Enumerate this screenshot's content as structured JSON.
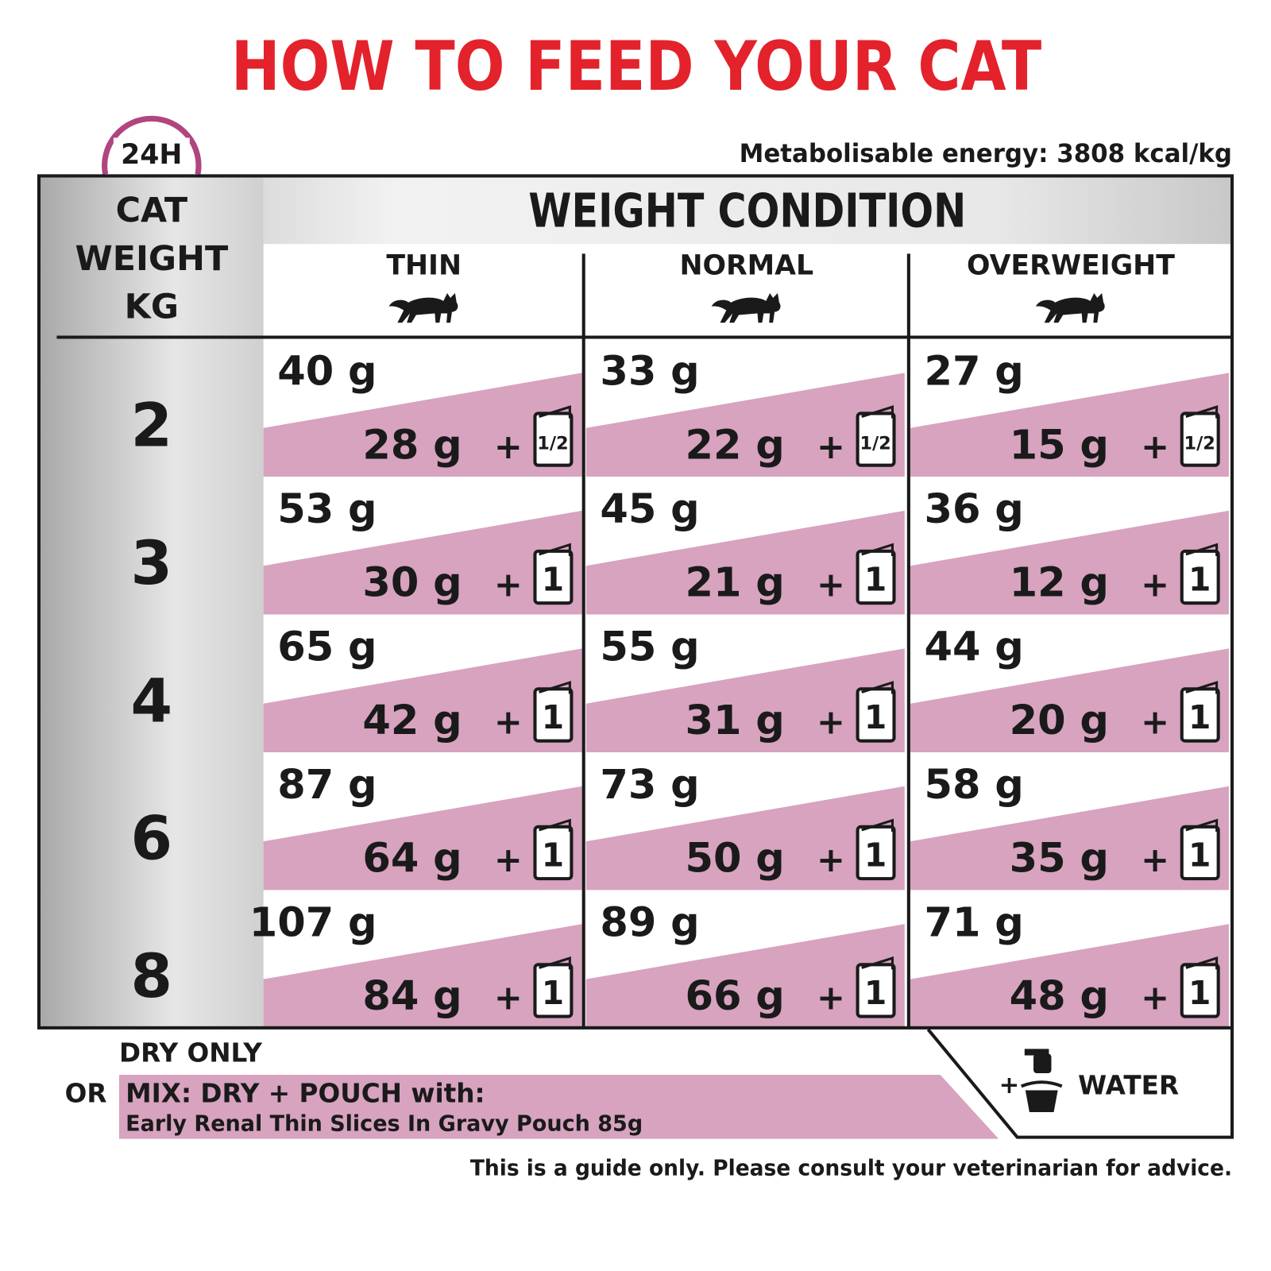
{
  "header": {
    "title": "HOW TO FEED YOUR CAT",
    "badge": "24H",
    "energy": "Metabolisable energy: 3808 kcal/kg"
  },
  "table": {
    "corner": [
      "CAT",
      "WEIGHT",
      "KG"
    ],
    "group_header": "WEIGHT CONDITION",
    "columns": [
      "THIN",
      "NORMAL",
      "OVERWEIGHT"
    ],
    "plus": "+",
    "rows": [
      {
        "weight": "2",
        "cells": [
          {
            "dry": "40 g",
            "mix": "28 g",
            "pouch": "1/2"
          },
          {
            "dry": "33 g",
            "mix": "22 g",
            "pouch": "1/2"
          },
          {
            "dry": "27 g",
            "mix": "15 g",
            "pouch": "1/2"
          }
        ]
      },
      {
        "weight": "3",
        "cells": [
          {
            "dry": "53 g",
            "mix": "30 g",
            "pouch": "1"
          },
          {
            "dry": "45 g",
            "mix": "21 g",
            "pouch": "1"
          },
          {
            "dry": "36 g",
            "mix": "12 g",
            "pouch": "1"
          }
        ]
      },
      {
        "weight": "4",
        "cells": [
          {
            "dry": "65 g",
            "mix": "42 g",
            "pouch": "1"
          },
          {
            "dry": "55 g",
            "mix": "31 g",
            "pouch": "1"
          },
          {
            "dry": "44 g",
            "mix": "20 g",
            "pouch": "1"
          }
        ]
      },
      {
        "weight": "6",
        "cells": [
          {
            "dry": "87 g",
            "mix": "64 g",
            "pouch": "1"
          },
          {
            "dry": "73 g",
            "mix": "50 g",
            "pouch": "1"
          },
          {
            "dry": "58 g",
            "mix": "35 g",
            "pouch": "1"
          }
        ]
      },
      {
        "weight": "8",
        "cells": [
          {
            "dry": "107 g",
            "mix": "84 g",
            "pouch": "1"
          },
          {
            "dry": "89 g",
            "mix": "66 g",
            "pouch": "1"
          },
          {
            "dry": "71 g",
            "mix": "48 g",
            "pouch": "1"
          }
        ]
      }
    ]
  },
  "legend": {
    "dry_only": "DRY ONLY",
    "or": "OR",
    "mix": "MIX: DRY + POUCH with:",
    "pouch_name": "Early Renal Thin Slices In Gravy Pouch 85g",
    "plus": "+",
    "water": "WATER"
  },
  "footer": "This is a guide only. Please consult your veterinarian for advice."
}
